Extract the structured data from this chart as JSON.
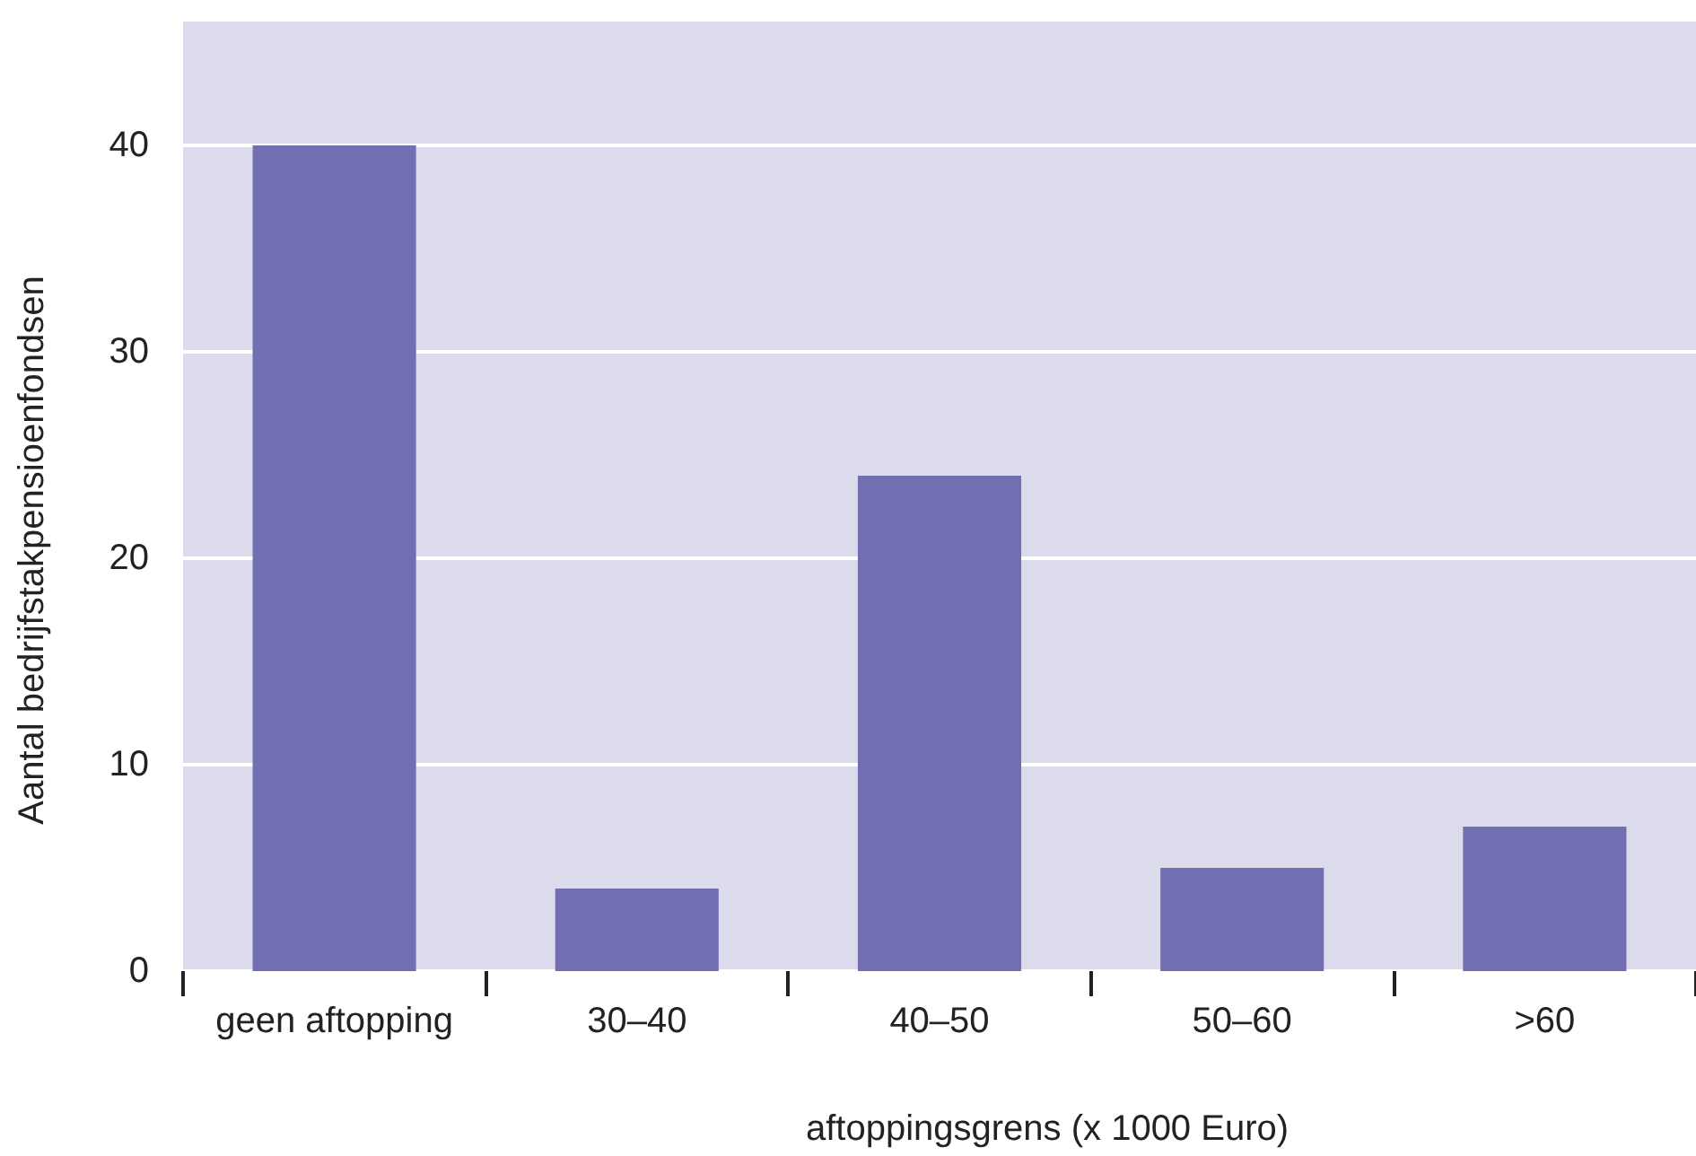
{
  "chart_data": {
    "type": "bar",
    "categories": [
      "geen aftopping",
      "30–40",
      "40–50",
      "50–60",
      ">60"
    ],
    "values": [
      40,
      4,
      24,
      5,
      7
    ],
    "color": "#716eb1",
    "xlabel": "aftoppingsgrens (x 1000 Euro)",
    "ylabel": "Aantal bedrijfstakpensioenfondsen",
    "ylim": [
      0,
      46
    ],
    "yticks": [
      0,
      10,
      20,
      30,
      40
    ],
    "grid": "y"
  }
}
